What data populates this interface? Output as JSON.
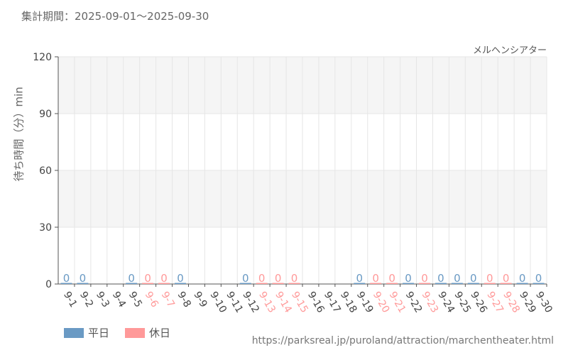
{
  "header": {
    "period": "集計期間：2025-09-01～2025-09-30"
  },
  "chart_data": {
    "type": "bar",
    "title": "メルヘンシアター",
    "ylabel": "待ち時間（分）min",
    "ylim": [
      0,
      120
    ],
    "yticks": [
      0,
      30,
      60,
      90,
      120
    ],
    "grid": true,
    "legend_position": "bottom-left",
    "categories": [
      "9-1",
      "9-2",
      "9-3",
      "9-4",
      "9-5",
      "9-6",
      "9-7",
      "9-8",
      "9-9",
      "9-10",
      "9-11",
      "9-12",
      "9-13",
      "9-14",
      "9-15",
      "9-16",
      "9-17",
      "9-18",
      "9-19",
      "9-20",
      "9-21",
      "9-22",
      "9-23",
      "9-24",
      "9-25",
      "9-26",
      "9-27",
      "9-28",
      "9-29",
      "9-30"
    ],
    "day_type": [
      "weekday",
      "weekday",
      "weekday",
      "weekday",
      "weekday",
      "holiday",
      "holiday",
      "weekday",
      "weekday",
      "weekday",
      "weekday",
      "weekday",
      "holiday",
      "holiday",
      "holiday",
      "weekday",
      "weekday",
      "weekday",
      "weekday",
      "holiday",
      "holiday",
      "weekday",
      "holiday",
      "weekday",
      "weekday",
      "weekday",
      "holiday",
      "holiday",
      "weekday",
      "weekday"
    ],
    "values": [
      0,
      0,
      null,
      null,
      0,
      0,
      0,
      0,
      null,
      null,
      null,
      0,
      0,
      0,
      0,
      null,
      null,
      null,
      0,
      0,
      0,
      0,
      0,
      0,
      0,
      0,
      0,
      0,
      0,
      0
    ],
    "series": [
      {
        "name": "平日",
        "color": "#6a9ac4"
      },
      {
        "name": "休日",
        "color": "#ff9999"
      }
    ]
  },
  "colors": {
    "weekday": "#6a9ac4",
    "holiday": "#ff9999",
    "band": "#f5f5f5",
    "grid": "#e6e6e6",
    "axis": "#555555"
  },
  "source": "https://parksreal.jp/puroland/attraction/marchentheater.html"
}
